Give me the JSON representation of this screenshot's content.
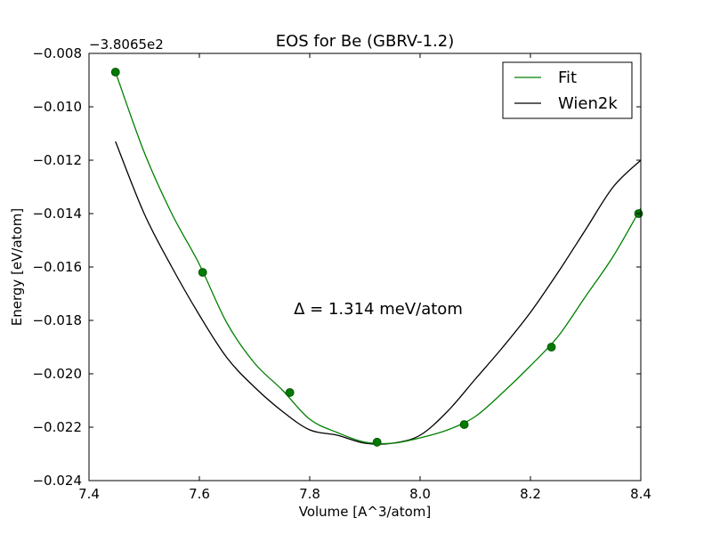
{
  "chart_data": {
    "type": "line",
    "title": "EOS for Be (GBRV-1.2)",
    "xlabel": "Volume [A^3/atom]",
    "ylabel": "Energy [eV/atom]",
    "offset_label": "−3.8065e2",
    "annotation": "Δ = 1.314 meV/atom",
    "xlim": [
      7.4,
      8.4
    ],
    "ylim": [
      -0.024,
      -0.008
    ],
    "xticks": [
      "7.4",
      "7.6",
      "7.8",
      "8.0",
      "8.2",
      "8.4"
    ],
    "yticks": [
      "−0.024",
      "−0.022",
      "−0.020",
      "−0.018",
      "−0.016",
      "−0.014",
      "−0.012",
      "−0.010",
      "−0.008"
    ],
    "grid": false,
    "legend_position": "top-right",
    "series": [
      {
        "name": "Fit",
        "color": "#008000",
        "markers": true,
        "x": [
          7.448,
          7.606,
          7.764,
          7.922,
          8.08,
          8.238,
          8.396
        ],
        "y": [
          -0.0087,
          -0.0162,
          -0.0207,
          -0.02256,
          -0.0219,
          -0.019,
          -0.014
        ],
        "curve_x": [
          7.448,
          7.5,
          7.55,
          7.6,
          7.65,
          7.7,
          7.75,
          7.8,
          7.85,
          7.9,
          7.95,
          8.0,
          8.05,
          8.1,
          8.15,
          8.2,
          8.25,
          8.3,
          8.35,
          8.4
        ],
        "curve_y": [
          -0.0087,
          -0.0117,
          -0.014,
          -0.0159,
          -0.0181,
          -0.0196,
          -0.0206,
          -0.0217,
          -0.0222,
          -0.02256,
          -0.0226,
          -0.0224,
          -0.0221,
          -0.0216,
          -0.0207,
          -0.0197,
          -0.0186,
          -0.0171,
          -0.0156,
          -0.0138
        ]
      },
      {
        "name": "Wien2k",
        "color": "#000000",
        "markers": false,
        "x": [
          7.448,
          7.5,
          7.55,
          7.6,
          7.65,
          7.7,
          7.75,
          7.8,
          7.85,
          7.9,
          7.95,
          8.0,
          8.05,
          8.1,
          8.15,
          8.2,
          8.25,
          8.3,
          8.35,
          8.4
        ],
        "y": [
          -0.0113,
          -0.014,
          -0.016,
          -0.0178,
          -0.0194,
          -0.0205,
          -0.0214,
          -0.0221,
          -0.0223,
          -0.0226,
          -0.0226,
          -0.0223,
          -0.0214,
          -0.0202,
          -0.019,
          -0.0177,
          -0.0162,
          -0.0146,
          -0.013,
          -0.012
        ]
      }
    ]
  }
}
